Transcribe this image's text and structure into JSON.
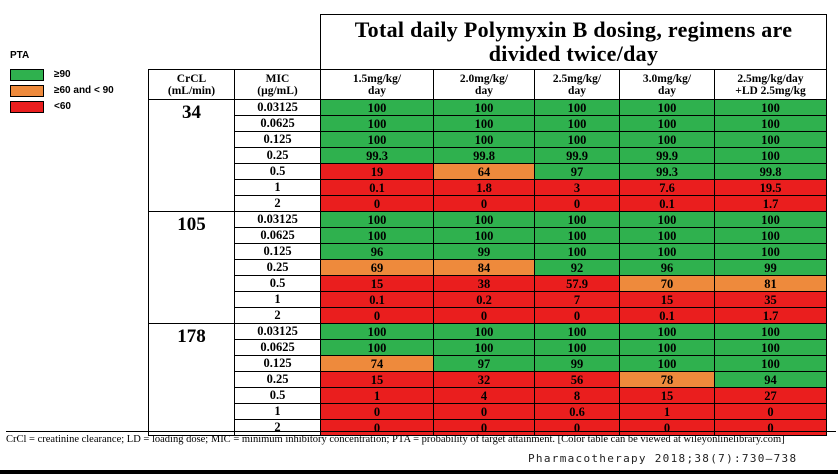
{
  "title": "Total daily Polymyxin B dosing, regimens are divided twice/day",
  "legend": {
    "title": "PTA",
    "items": [
      {
        "label": "≥90",
        "color": "#2fb14e"
      },
      {
        "label": "≥60 and < 90",
        "color": "#ee8a3c"
      },
      {
        "label": "<60",
        "color": "#ea1e1e"
      }
    ]
  },
  "headers": {
    "crcl": [
      "CrCL",
      "(mL/min)"
    ],
    "mic": [
      "MIC",
      "(µg/mL)"
    ],
    "doses": [
      [
        "1.5mg/kg/",
        "day"
      ],
      [
        "2.0mg/kg/",
        "day"
      ],
      [
        "2.5mg/kg/",
        "day"
      ],
      [
        "3.0mg/kg/",
        "day"
      ],
      [
        "2.5mg/kg/day",
        "+LD 2.5mg/kg"
      ]
    ]
  },
  "colors": {
    "green": "#2fb14e",
    "orange": "#ee8a3c",
    "red": "#ea1e1e"
  },
  "groups": [
    {
      "crcl": "34",
      "rows": [
        {
          "mic": "0.03125",
          "values": [
            "100",
            "100",
            "100",
            "100",
            "100"
          ],
          "levels": [
            "green",
            "green",
            "green",
            "green",
            "green"
          ]
        },
        {
          "mic": "0.0625",
          "values": [
            "100",
            "100",
            "100",
            "100",
            "100"
          ],
          "levels": [
            "green",
            "green",
            "green",
            "green",
            "green"
          ]
        },
        {
          "mic": "0.125",
          "values": [
            "100",
            "100",
            "100",
            "100",
            "100"
          ],
          "levels": [
            "green",
            "green",
            "green",
            "green",
            "green"
          ]
        },
        {
          "mic": "0.25",
          "values": [
            "99.3",
            "99.8",
            "99.9",
            "99.9",
            "100"
          ],
          "levels": [
            "green",
            "green",
            "green",
            "green",
            "green"
          ]
        },
        {
          "mic": "0.5",
          "values": [
            "19",
            "64",
            "97",
            "99.3",
            "99.8"
          ],
          "levels": [
            "red",
            "orange",
            "green",
            "green",
            "green"
          ]
        },
        {
          "mic": "1",
          "values": [
            "0.1",
            "1.8",
            "3",
            "7.6",
            "19.5"
          ],
          "levels": [
            "red",
            "red",
            "red",
            "red",
            "red"
          ]
        },
        {
          "mic": "2",
          "values": [
            "0",
            "0",
            "0",
            "0.1",
            "1.7"
          ],
          "levels": [
            "red",
            "red",
            "red",
            "red",
            "red"
          ]
        }
      ]
    },
    {
      "crcl": "105",
      "rows": [
        {
          "mic": "0.03125",
          "values": [
            "100",
            "100",
            "100",
            "100",
            "100"
          ],
          "levels": [
            "green",
            "green",
            "green",
            "green",
            "green"
          ]
        },
        {
          "mic": "0.0625",
          "values": [
            "100",
            "100",
            "100",
            "100",
            "100"
          ],
          "levels": [
            "green",
            "green",
            "green",
            "green",
            "green"
          ]
        },
        {
          "mic": "0.125",
          "values": [
            "96",
            "99",
            "100",
            "100",
            "100"
          ],
          "levels": [
            "green",
            "green",
            "green",
            "green",
            "green"
          ]
        },
        {
          "mic": "0.25",
          "values": [
            "69",
            "84",
            "92",
            "96",
            "99"
          ],
          "levels": [
            "orange",
            "orange",
            "green",
            "green",
            "green"
          ]
        },
        {
          "mic": "0.5",
          "values": [
            "15",
            "38",
            "57.9",
            "70",
            "81"
          ],
          "levels": [
            "red",
            "red",
            "red",
            "orange",
            "orange"
          ]
        },
        {
          "mic": "1",
          "values": [
            "0.1",
            "0.2",
            "7",
            "15",
            "35"
          ],
          "levels": [
            "red",
            "red",
            "red",
            "red",
            "red"
          ]
        },
        {
          "mic": "2",
          "values": [
            "0",
            "0",
            "0",
            "0.1",
            "1.7"
          ],
          "levels": [
            "red",
            "red",
            "red",
            "red",
            "red"
          ]
        }
      ]
    },
    {
      "crcl": "178",
      "rows": [
        {
          "mic": "0.03125",
          "values": [
            "100",
            "100",
            "100",
            "100",
            "100"
          ],
          "levels": [
            "green",
            "green",
            "green",
            "green",
            "green"
          ]
        },
        {
          "mic": "0.0625",
          "values": [
            "100",
            "100",
            "100",
            "100",
            "100"
          ],
          "levels": [
            "green",
            "green",
            "green",
            "green",
            "green"
          ]
        },
        {
          "mic": "0.125",
          "values": [
            "74",
            "97",
            "99",
            "100",
            "100"
          ],
          "levels": [
            "orange",
            "green",
            "green",
            "green",
            "green"
          ]
        },
        {
          "mic": "0.25",
          "values": [
            "15",
            "32",
            "56",
            "78",
            "94"
          ],
          "levels": [
            "red",
            "red",
            "red",
            "orange",
            "green"
          ]
        },
        {
          "mic": "0.5",
          "values": [
            "1",
            "4",
            "8",
            "15",
            "27"
          ],
          "levels": [
            "red",
            "red",
            "red",
            "red",
            "red"
          ]
        },
        {
          "mic": "1",
          "values": [
            "0",
            "0",
            "0.6",
            "1",
            "0"
          ],
          "levels": [
            "red",
            "red",
            "red",
            "red",
            "red"
          ]
        },
        {
          "mic": "2",
          "values": [
            "0",
            "0",
            "0",
            "0",
            "0"
          ],
          "levels": [
            "red",
            "red",
            "red",
            "red",
            "red"
          ]
        }
      ]
    }
  ],
  "footnote": "CrCl = creatinine clearance; LD = loading dose; MIC = minimum inhibitory concentration; PTA = probability of target attainment. [Color table can be viewed at wileyonlinelibrary.com]",
  "citation": "Pharmacotherapy 2018;38(7):730–738"
}
